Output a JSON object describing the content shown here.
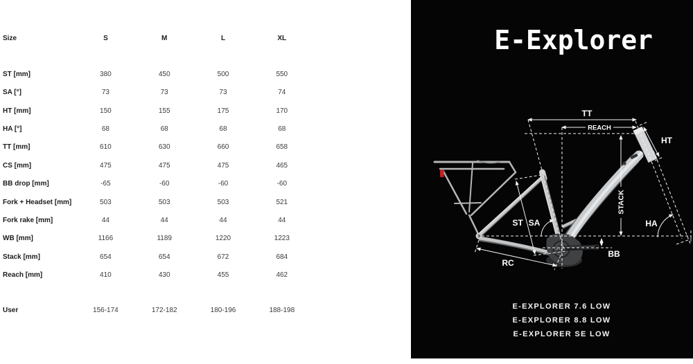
{
  "table": {
    "header": {
      "label": "Size",
      "columns": [
        "S",
        "M",
        "L",
        "XL"
      ]
    },
    "rows": [
      {
        "label": "ST [mm]",
        "values": [
          "380",
          "450",
          "500",
          "550"
        ]
      },
      {
        "label": "SA [°]",
        "values": [
          "73",
          "73",
          "73",
          "74"
        ]
      },
      {
        "label": "HT [mm]",
        "values": [
          "150",
          "155",
          "175",
          "170"
        ]
      },
      {
        "label": "HA [°]",
        "values": [
          "68",
          "68",
          "68",
          "68"
        ]
      },
      {
        "label": "TT [mm]",
        "values": [
          "610",
          "630",
          "660",
          "658"
        ]
      },
      {
        "label": "CS [mm]",
        "values": [
          "475",
          "475",
          "475",
          "465"
        ]
      },
      {
        "label": "BB drop [mm]",
        "values": [
          "-65",
          "-60",
          "-60",
          "-60"
        ]
      },
      {
        "label": "Fork + Headset [mm]",
        "values": [
          "503",
          "503",
          "503",
          "521"
        ]
      },
      {
        "label": "Fork rake [mm]",
        "values": [
          "44",
          "44",
          "44",
          "44"
        ]
      },
      {
        "label": "WB [mm]",
        "values": [
          "1166",
          "1189",
          "1220",
          "1223"
        ]
      },
      {
        "label": "Stack [mm]",
        "values": [
          "654",
          "654",
          "672",
          "684"
        ]
      },
      {
        "label": "Reach [mm]",
        "values": [
          "410",
          "430",
          "455",
          "462"
        ]
      }
    ],
    "user_row": {
      "label": "User",
      "values": [
        "156-174",
        "172-182",
        "180-196",
        "188-198"
      ]
    }
  },
  "panel": {
    "title": "E-Explorer",
    "models": [
      "E-EXPLORER 7.6 LOW",
      "E-EXPLORER 8.8 LOW",
      "E-EXPLORER SE LOW"
    ],
    "diagram": {
      "tt": "TT",
      "reach": "REACH",
      "ht": "HT",
      "st": "ST",
      "sa": "SA",
      "stack": "STACK",
      "ha": "HA",
      "bb": "BB",
      "rc": "RC"
    },
    "colors": {
      "panel_background": "#050505",
      "dimension_lines": "#f2f2f2",
      "frame_light": "#c9cbcd",
      "frame_shadow": "#57595b",
      "motor_dark": "#3f4143",
      "reflector_red": "#c42020"
    }
  }
}
